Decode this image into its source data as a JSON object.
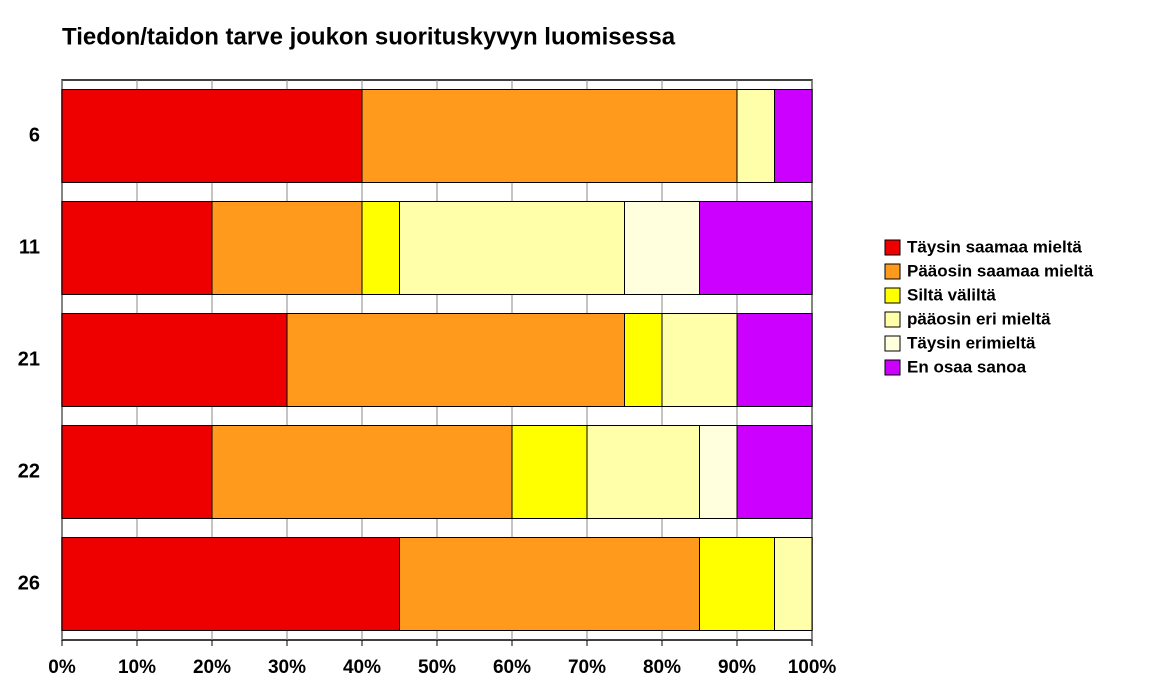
{
  "chart_data": {
    "type": "stacked_barh",
    "title": "Tiedon/taidon tarve joukon suorituskyvyn luomisessa",
    "categories": [
      "6",
      "11",
      "21",
      "22",
      "26"
    ],
    "series": [
      {
        "name": "Täysin saamaa mieltä",
        "color": "#ee0000",
        "values": [
          40,
          20,
          30,
          20,
          45
        ]
      },
      {
        "name": "Pääosin saamaa mieltä",
        "color": "#ff9a1c",
        "values": [
          50,
          20,
          45,
          40,
          40
        ]
      },
      {
        "name": "Siltä väliltä",
        "color": "#ffff00",
        "values": [
          0,
          5,
          5,
          10,
          10
        ]
      },
      {
        "name": "pääosin eri mieltä",
        "color": "#ffffaa",
        "values": [
          5,
          30,
          10,
          15,
          5
        ]
      },
      {
        "name": "Täysin erimieltä",
        "color": "#ffffdd",
        "values": [
          0,
          10,
          0,
          5,
          0
        ]
      },
      {
        "name": "En osaa sanoa",
        "color": "#cc00ff",
        "values": [
          5,
          15,
          10,
          10,
          0
        ]
      }
    ],
    "xlim": [
      0,
      100
    ],
    "xticks": [
      {
        "value": 0,
        "label": "0%"
      },
      {
        "value": 10,
        "label": "10%"
      },
      {
        "value": 20,
        "label": "20%"
      },
      {
        "value": 30,
        "label": "30%"
      },
      {
        "value": 40,
        "label": "40%"
      },
      {
        "value": 50,
        "label": "50%"
      },
      {
        "value": 60,
        "label": "60%"
      },
      {
        "value": 70,
        "label": "70%"
      },
      {
        "value": 80,
        "label": "80%"
      },
      {
        "value": 90,
        "label": "90%"
      },
      {
        "value": 100,
        "label": "100%"
      }
    ],
    "grid": true,
    "legend": "right"
  }
}
